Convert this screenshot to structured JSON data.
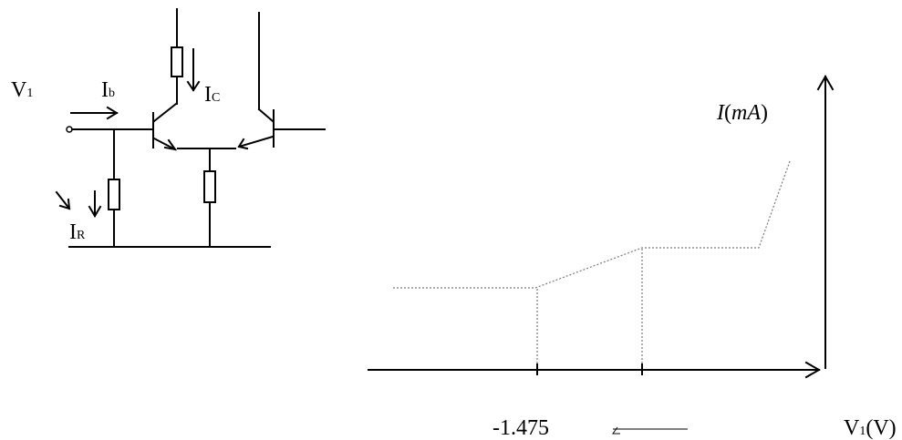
{
  "colors": {
    "ink": "#000000",
    "dotted": "#7a7a7a",
    "background": "#ffffff"
  },
  "circuit": {
    "input_label": {
      "main": "V",
      "sub": "1"
    },
    "base_current": {
      "main": "I",
      "sub": "b"
    },
    "collector_current": {
      "main": "I",
      "sub": "C"
    },
    "resistor_current": {
      "main": "I",
      "sub": "R"
    }
  },
  "graph": {
    "y_axis_label": {
      "italic_I": "I",
      "open": "(",
      "unit": "mA",
      "close": ")"
    },
    "x_axis_label": {
      "main": "V",
      "sub": "1",
      "unit": "(V)"
    },
    "x_tick_value": "-1.475"
  }
}
